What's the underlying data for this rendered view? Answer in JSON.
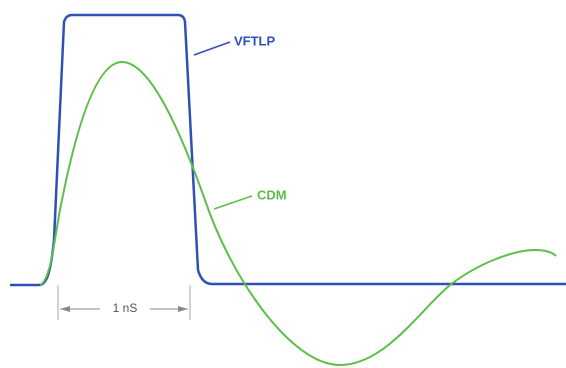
{
  "labels": {
    "vftlp": "VFTLP",
    "cdm": "CDM",
    "duration": "1 nS"
  }
}
